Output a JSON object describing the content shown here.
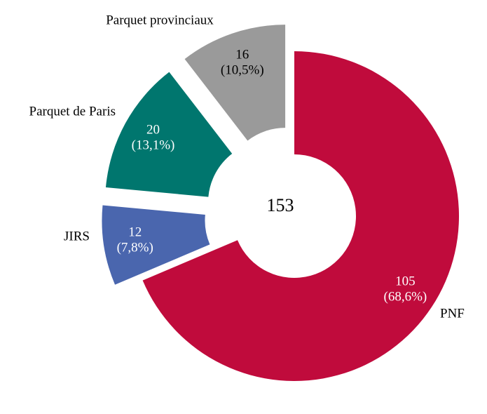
{
  "chart_data": {
    "type": "donut",
    "categories": [
      "PNF",
      "JIRS",
      "Parquet de Paris",
      "Parquet provinciaux"
    ],
    "values": [
      105,
      12,
      20,
      16
    ],
    "share_labels": [
      "(68,6%)",
      "(7,8%)",
      "(13,1%)",
      "(10,5%)"
    ],
    "colors": [
      "#c00b3c",
      "#4a66ae",
      "#00766e",
      "#9a9a9a"
    ],
    "label_colors": [
      "#ffffff",
      "#ffffff",
      "#ffffff",
      "#000000"
    ],
    "exploded": [
      false,
      true,
      true,
      true
    ],
    "total": 153
  }
}
